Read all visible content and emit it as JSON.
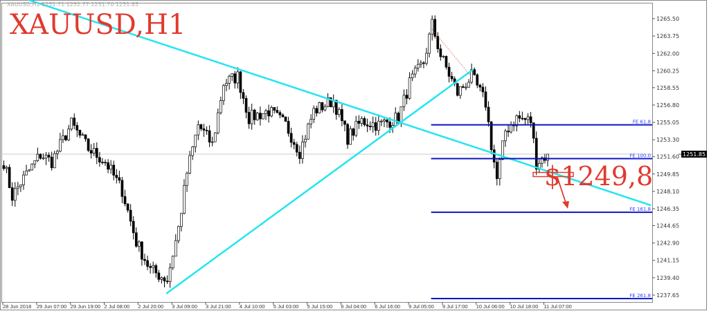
{
  "header": {
    "ohlc_line": "XAUUSD,H1  1251.71 1252.77 1251.70 1251.85",
    "title": "XAUUSD,H1"
  },
  "annotation": {
    "price_text": "$1249,8",
    "color": "#e03a2e"
  },
  "chart_data": {
    "type": "candlestick",
    "symbol": "XAUUSD",
    "timeframe": "H1",
    "ylim": [
      1236.9,
      1267.1
    ],
    "y_ticks": [
      "1265.50",
      "1263.75",
      "1262.00",
      "1260.25",
      "1258.55",
      "1256.80",
      "1255.05",
      "1253.30",
      "1251.60",
      "1249.85",
      "1248.10",
      "1246.35",
      "1244.65",
      "1242.90",
      "1241.15",
      "1239.40",
      "1237.65"
    ],
    "x_labels": [
      "28 Jun 2018",
      "29 Jun 07:00",
      "29 Jun 19:00",
      "2 Jul 08:00",
      "2 Jul 20:00",
      "3 Jul 09:00",
      "3 Jul 21:00",
      "4 Jul 10:00",
      "5 Jul 03:00",
      "5 Jul 15:00",
      "6 Jul 04:00",
      "6 Jul 16:00",
      "9 Jul 05:00",
      "9 Jul 17:00",
      "10 Jul 06:00",
      "10 Jul 18:00",
      "11 Jul 07:00"
    ],
    "bars_per_label": 12,
    "current_price": "1251.85",
    "price_path_bar_close": [
      [
        0,
        1251.1
      ],
      [
        3,
        1247.6
      ],
      [
        6,
        1249
      ],
      [
        13,
        1251.8
      ],
      [
        17,
        1251.1
      ],
      [
        24,
        1254.9
      ],
      [
        30,
        1252.4
      ],
      [
        36,
        1251.1
      ],
      [
        42,
        1248.2
      ],
      [
        47,
        1243
      ],
      [
        52,
        1240.2
      ],
      [
        58,
        1239.2
      ],
      [
        62,
        1244.4
      ],
      [
        65,
        1250
      ],
      [
        69,
        1254.8
      ],
      [
        74,
        1252.8
      ],
      [
        78,
        1259
      ],
      [
        83,
        1259.7
      ],
      [
        87,
        1255.5
      ],
      [
        94,
        1256.2
      ],
      [
        100,
        1254.8
      ],
      [
        105,
        1252.1
      ],
      [
        110,
        1256.2
      ],
      [
        117,
        1257.3
      ],
      [
        122,
        1253.5
      ],
      [
        127,
        1255.2
      ],
      [
        133,
        1254.8
      ],
      [
        140,
        1255.5
      ],
      [
        144,
        1259
      ],
      [
        149,
        1261.1
      ],
      [
        152,
        1264.9
      ],
      [
        155,
        1261.8
      ],
      [
        161,
        1258
      ],
      [
        166,
        1259.7
      ],
      [
        171,
        1257
      ],
      [
        173,
        1252.8
      ],
      [
        175,
        1249.3
      ],
      [
        178,
        1254.2
      ],
      [
        182,
        1255.5
      ],
      [
        187,
        1255.2
      ],
      [
        189,
        1251
      ],
      [
        193,
        1251.85
      ]
    ],
    "trendlines": [
      {
        "from": [
          9,
          1267.4
        ],
        "to": [
          230,
          1246.7
        ],
        "color": "#22e5f0"
      },
      {
        "from": [
          58,
          1237.8
        ],
        "to": [
          167,
          1260.4
        ],
        "color": "#22e5f0"
      }
    ],
    "fibo_expansion": {
      "start_bar": 152,
      "color": "#0b14b8",
      "levels": [
        {
          "label": "FE 61.8",
          "price": 1254.8
        },
        {
          "label": "FE 100.0",
          "price": 1251.4
        },
        {
          "label": "FE 161.8",
          "price": 1246.0
        },
        {
          "label": "FE 261.8",
          "price": 1237.3
        }
      ]
    },
    "target_price": 1249.8
  }
}
